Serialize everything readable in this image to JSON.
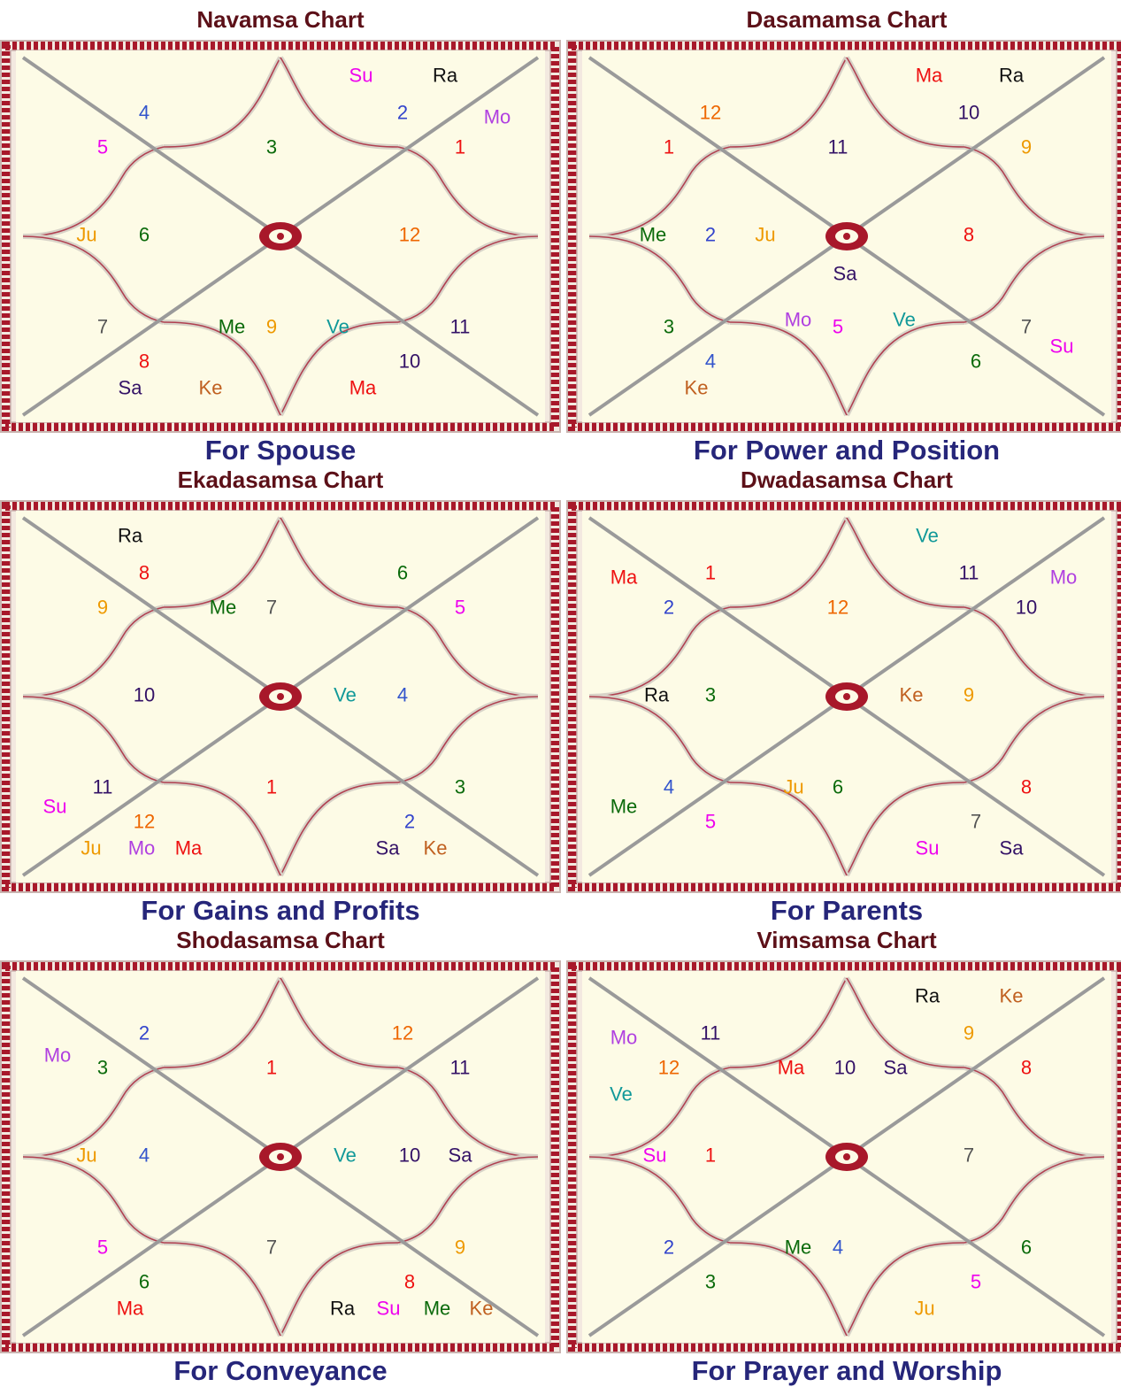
{
  "colors": {
    "background": "#fdfbe6",
    "border_red": "#a8182a",
    "lotus_line": "#b04050",
    "diagonal": "#9a9a9a",
    "planet": {
      "Su": "#ee00ee",
      "Mo": "#b040e0",
      "Ma": "#ee1111",
      "Me": "#0a6a0a",
      "Ju": "#ee9900",
      "Ve": "#119999",
      "Sa": "#331166",
      "Ra": "#111111",
      "Ke": "#c06020"
    },
    "sign": {
      "1": "#ee1111",
      "2": "#3344cc",
      "3": "#0a6a0a",
      "4": "#3355cc",
      "5": "#ee00ee",
      "6": "#0a6a0a",
      "7": "#555555",
      "8": "#ee1111",
      "9": "#ee9900",
      "10": "#331166",
      "11": "#331166",
      "12": "#ee6600"
    }
  },
  "charts": [
    {
      "title": "Navamsa Chart",
      "subtitle": "For Spouse",
      "houses": [
        {
          "sign": "3",
          "planets": []
        },
        {
          "sign": "4",
          "planets": []
        },
        {
          "sign": "5",
          "planets": []
        },
        {
          "sign": "6",
          "planets": [
            "Ju"
          ]
        },
        {
          "sign": "7",
          "planets": []
        },
        {
          "sign": "8",
          "planets": [
            "Sa",
            "Ke"
          ]
        },
        {
          "sign": "9",
          "planets": [
            "Me",
            "Ve"
          ]
        },
        {
          "sign": "10",
          "planets": [
            "Ma"
          ]
        },
        {
          "sign": "11",
          "planets": []
        },
        {
          "sign": "12",
          "planets": []
        },
        {
          "sign": "1",
          "planets": [
            "Mo"
          ]
        },
        {
          "sign": "2",
          "planets": [
            "Su",
            "Ra"
          ]
        }
      ]
    },
    {
      "title": "Dasamamsa Chart",
      "subtitle": "For Power and Position",
      "houses": [
        {
          "sign": "11",
          "planets": []
        },
        {
          "sign": "12",
          "planets": []
        },
        {
          "sign": "1",
          "planets": []
        },
        {
          "sign": "2",
          "planets": [
            "Me",
            "Ju"
          ]
        },
        {
          "sign": "3",
          "planets": []
        },
        {
          "sign": "4",
          "planets": [
            "Ke"
          ]
        },
        {
          "sign": "5",
          "planets": [
            "Sa",
            "Mo",
            "Ve"
          ]
        },
        {
          "sign": "6",
          "planets": []
        },
        {
          "sign": "7",
          "planets": [
            "Su"
          ]
        },
        {
          "sign": "8",
          "planets": []
        },
        {
          "sign": "9",
          "planets": []
        },
        {
          "sign": "10",
          "planets": [
            "Ma",
            "Ra"
          ]
        }
      ]
    },
    {
      "title": "Ekadasamsa Chart",
      "subtitle": "For Gains and Profits",
      "houses": [
        {
          "sign": "7",
          "planets": [
            "Me"
          ]
        },
        {
          "sign": "8",
          "planets": [
            "Ra"
          ]
        },
        {
          "sign": "9",
          "planets": []
        },
        {
          "sign": "10",
          "planets": []
        },
        {
          "sign": "11",
          "planets": [
            "Su"
          ]
        },
        {
          "sign": "12",
          "planets": [
            "Ju",
            "Mo",
            "Ma"
          ]
        },
        {
          "sign": "1",
          "planets": []
        },
        {
          "sign": "2",
          "planets": [
            "Sa",
            "Ke"
          ]
        },
        {
          "sign": "3",
          "planets": []
        },
        {
          "sign": "4",
          "planets": [
            "Ve"
          ]
        },
        {
          "sign": "5",
          "planets": []
        },
        {
          "sign": "6",
          "planets": []
        }
      ]
    },
    {
      "title": "Dwadasamsa Chart",
      "subtitle": "For Parents",
      "houses": [
        {
          "sign": "12",
          "planets": []
        },
        {
          "sign": "1",
          "planets": []
        },
        {
          "sign": "2",
          "planets": [
            "Ma"
          ]
        },
        {
          "sign": "3",
          "planets": [
            "Ra"
          ]
        },
        {
          "sign": "4",
          "planets": [
            "Me"
          ]
        },
        {
          "sign": "5",
          "planets": []
        },
        {
          "sign": "6",
          "planets": [
            "Ju"
          ]
        },
        {
          "sign": "7",
          "planets": [
            "Su",
            "Sa"
          ]
        },
        {
          "sign": "8",
          "planets": []
        },
        {
          "sign": "9",
          "planets": [
            "Ke"
          ]
        },
        {
          "sign": "10",
          "planets": [
            "Mo"
          ]
        },
        {
          "sign": "11",
          "planets": [
            "Ve"
          ]
        }
      ]
    },
    {
      "title": "Shodasamsa Chart",
      "subtitle": "For Conveyance",
      "houses": [
        {
          "sign": "1",
          "planets": []
        },
        {
          "sign": "2",
          "planets": []
        },
        {
          "sign": "3",
          "planets": [
            "Mo"
          ]
        },
        {
          "sign": "4",
          "planets": [
            "Ju"
          ]
        },
        {
          "sign": "5",
          "planets": []
        },
        {
          "sign": "6",
          "planets": [
            "Ma"
          ]
        },
        {
          "sign": "7",
          "planets": []
        },
        {
          "sign": "8",
          "planets": [
            "Ra",
            "Su",
            "Me",
            "Ke"
          ]
        },
        {
          "sign": "9",
          "planets": []
        },
        {
          "sign": "10",
          "planets": [
            "Ve",
            "Sa"
          ]
        },
        {
          "sign": "11",
          "planets": []
        },
        {
          "sign": "12",
          "planets": []
        }
      ]
    },
    {
      "title": "Vimsamsa Chart",
      "subtitle": "For Prayer and Worship",
      "houses": [
        {
          "sign": "10",
          "planets": [
            "Ma",
            "Sa"
          ]
        },
        {
          "sign": "11",
          "planets": []
        },
        {
          "sign": "12",
          "planets": [
            "Mo",
            "Ve"
          ]
        },
        {
          "sign": "1",
          "planets": [
            "Su"
          ]
        },
        {
          "sign": "2",
          "planets": []
        },
        {
          "sign": "3",
          "planets": []
        },
        {
          "sign": "4",
          "planets": [
            "Me"
          ]
        },
        {
          "sign": "5",
          "planets": [
            "Ju"
          ]
        },
        {
          "sign": "6",
          "planets": []
        },
        {
          "sign": "7",
          "planets": []
        },
        {
          "sign": "8",
          "planets": []
        },
        {
          "sign": "9",
          "planets": [
            "Ra",
            "Ke"
          ]
        }
      ]
    }
  ]
}
